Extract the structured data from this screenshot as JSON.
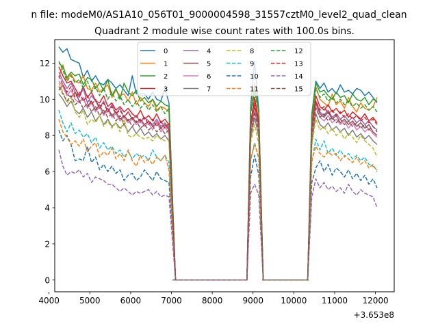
{
  "chart_data": {
    "type": "line",
    "suptitle": "n file: modeM0/AS1A10_056T01_9000004598_31557cztM0_level2_quad_clean",
    "title": "Quadrant 2 module wise count rates with 100.0s bins.",
    "xlabel": "",
    "ylabel": "",
    "x_offset_label": "+3.653e8",
    "xlim": [
      4140,
      12460
    ],
    "ylim": [
      -0.65,
      13.3
    ],
    "xticks": [
      4000,
      5000,
      6000,
      7000,
      8000,
      9000,
      10000,
      11000,
      12000
    ],
    "yticks": [
      0,
      2,
      4,
      6,
      8,
      10,
      12
    ],
    "grid": false,
    "legend_position": "top-center",
    "x": [
      4240,
      4340,
      4440,
      4540,
      4640,
      4740,
      4840,
      4940,
      5040,
      5140,
      5240,
      5340,
      5440,
      5540,
      5640,
      5740,
      5840,
      5940,
      6040,
      6140,
      6240,
      6340,
      6440,
      6540,
      6640,
      6740,
      6840,
      6940,
      7040,
      8840,
      8940,
      9040,
      9140,
      9240,
      10340,
      10440,
      10540,
      10640,
      10740,
      10840,
      10940,
      11040,
      11140,
      11240,
      11340,
      11440,
      11540,
      11640,
      11740,
      11840,
      11940,
      12040
    ],
    "gap_x": [
      7100,
      8850,
      9250,
      10350
    ],
    "series": [
      {
        "name": "0",
        "color": "#1f77b4",
        "dash": "solid",
        "values": [
          12.9,
          12.6,
          12.8,
          12.2,
          12.1,
          12.0,
          11.2,
          11.6,
          11.0,
          11.3,
          10.9,
          10.8,
          11.1,
          10.9,
          10.6,
          10.8,
          10.5,
          10.2,
          11.3,
          10.3,
          10.3,
          10.3,
          10.0,
          10.4,
          10.0,
          9.9,
          10.6,
          9.8,
          0,
          0,
          9.6,
          12.1,
          9.4,
          0,
          0,
          9.2,
          11.0,
          10.6,
          10.9,
          10.4,
          10.6,
          10.3,
          10.8,
          10.4,
          10.5,
          10.3,
          10.6,
          10.5,
          10.2,
          10.4,
          10.1,
          9.8
        ]
      },
      {
        "name": "1",
        "color": "#ff7f0e",
        "dash": "solid",
        "values": [
          11.2,
          11.9,
          11.1,
          11.4,
          11.0,
          10.9,
          11.3,
          10.6,
          10.5,
          10.9,
          10.4,
          10.6,
          10.8,
          10.1,
          10.5,
          10.2,
          10.3,
          9.9,
          10.4,
          9.7,
          10.1,
          9.8,
          9.6,
          10.0,
          9.4,
          9.6,
          9.5,
          9.3,
          0,
          0,
          9.3,
          10.9,
          9.2,
          0,
          0,
          8.9,
          10.7,
          10.0,
          9.8,
          9.6,
          10.3,
          9.7,
          9.9,
          9.5,
          10.1,
          9.6,
          9.3,
          9.8,
          9.5,
          9.4,
          9.6,
          10.1
        ]
      },
      {
        "name": "2",
        "color": "#2ca02c",
        "dash": "solid",
        "values": [
          12.0,
          11.8,
          11.2,
          11.5,
          11.3,
          11.4,
          10.8,
          11.2,
          11.1,
          10.6,
          10.9,
          10.5,
          11.1,
          10.2,
          10.6,
          10.0,
          10.9,
          10.4,
          10.2,
          10.5,
          9.9,
          10.1,
          9.8,
          10.0,
          9.6,
          9.9,
          9.7,
          9.6,
          0,
          0,
          9.3,
          10.6,
          9.4,
          0,
          0,
          9.1,
          10.9,
          10.4,
          10.5,
          10.2,
          10.0,
          10.4,
          10.1,
          10.2,
          9.8,
          10.3,
          10.0,
          9.9,
          10.1,
          9.7,
          10.0,
          9.9
        ]
      },
      {
        "name": "3",
        "color": "#d62728",
        "dash": "solid",
        "values": [
          11.8,
          11.3,
          10.9,
          11.0,
          10.6,
          10.2,
          10.7,
          10.1,
          10.4,
          9.9,
          9.8,
          10.2,
          9.6,
          9.8,
          9.4,
          9.6,
          9.3,
          9.5,
          9.2,
          9.0,
          9.4,
          8.9,
          9.1,
          8.8,
          9.2,
          8.7,
          8.9,
          8.6,
          0,
          0,
          8.7,
          10.1,
          8.8,
          0,
          0,
          8.5,
          10.2,
          9.6,
          9.4,
          9.7,
          9.3,
          9.5,
          9.2,
          9.4,
          9.0,
          9.3,
          9.1,
          8.9,
          9.2,
          8.8,
          9.0,
          8.7
        ]
      },
      {
        "name": "4",
        "color": "#9467bd",
        "dash": "solid",
        "values": [
          11.5,
          11.0,
          10.6,
          10.9,
          10.4,
          10.1,
          10.6,
          9.8,
          10.2,
          9.9,
          9.5,
          9.9,
          9.3,
          9.7,
          9.2,
          9.5,
          9.0,
          9.3,
          8.9,
          9.1,
          8.7,
          9.0,
          8.8,
          8.6,
          8.9,
          8.5,
          8.7,
          8.4,
          0,
          0,
          8.4,
          9.7,
          8.5,
          0,
          0,
          8.3,
          9.9,
          9.3,
          9.1,
          9.4,
          9.0,
          9.2,
          8.9,
          9.1,
          8.8,
          9.0,
          8.7,
          8.9,
          8.6,
          8.8,
          8.5,
          8.3
        ]
      },
      {
        "name": "5",
        "color": "#8c564b",
        "dash": "solid",
        "values": [
          10.5,
          10.8,
          10.3,
          10.1,
          10.4,
          9.9,
          10.0,
          9.6,
          9.9,
          9.4,
          9.7,
          9.2,
          9.5,
          9.1,
          9.3,
          8.9,
          9.1,
          8.8,
          9.0,
          8.7,
          8.9,
          8.6,
          8.8,
          8.5,
          8.7,
          8.4,
          8.6,
          8.3,
          0,
          0,
          8.3,
          9.6,
          8.4,
          0,
          0,
          8.1,
          9.8,
          9.2,
          9.0,
          9.3,
          8.9,
          9.1,
          8.7,
          8.9,
          8.6,
          8.8,
          8.5,
          8.7,
          8.4,
          8.6,
          8.2,
          8.0
        ]
      },
      {
        "name": "6",
        "color": "#e377c2",
        "dash": "solid",
        "values": [
          11.0,
          10.7,
          10.2,
          10.5,
          10.0,
          9.8,
          10.1,
          9.5,
          9.8,
          9.3,
          9.6,
          9.1,
          9.4,
          9.0,
          9.2,
          8.8,
          9.0,
          8.7,
          8.9,
          8.6,
          8.8,
          8.5,
          8.7,
          8.3,
          8.8,
          8.2,
          8.5,
          8.1,
          0,
          0,
          8.2,
          9.4,
          8.3,
          0,
          0,
          8.0,
          9.6,
          9.0,
          8.8,
          9.1,
          8.7,
          8.9,
          8.6,
          8.8,
          8.4,
          8.7,
          8.3,
          8.5,
          8.2,
          8.4,
          8.1,
          7.9
        ]
      },
      {
        "name": "7",
        "color": "#7f7f7f",
        "dash": "solid",
        "values": [
          10.3,
          10.0,
          9.6,
          9.9,
          9.4,
          9.2,
          9.5,
          9.0,
          9.3,
          8.8,
          9.1,
          8.6,
          8.9,
          8.5,
          8.7,
          8.4,
          8.6,
          8.2,
          8.5,
          8.1,
          8.4,
          8.0,
          8.2,
          7.9,
          8.1,
          7.8,
          8.0,
          7.7,
          0,
          0,
          7.8,
          9.0,
          7.9,
          0,
          0,
          7.6,
          9.2,
          8.6,
          8.4,
          8.7,
          8.3,
          8.5,
          8.2,
          8.4,
          8.0,
          8.3,
          7.9,
          8.1,
          7.8,
          8.0,
          7.7,
          7.5
        ]
      },
      {
        "name": "8",
        "color": "#bcbd22",
        "dash": "dashed",
        "values": [
          10.9,
          10.4,
          9.8,
          10.1,
          9.3,
          9.0,
          9.4,
          8.6,
          8.9,
          8.7,
          9.1,
          8.5,
          8.8,
          8.4,
          8.7,
          8.2,
          8.9,
          8.0,
          7.9,
          8.1,
          7.9,
          7.8,
          7.9,
          7.7,
          8.0,
          7.8,
          7.7,
          7.8,
          0,
          0,
          7.6,
          8.6,
          7.5,
          0,
          0,
          7.4,
          8.9,
          8.3,
          8.5,
          8.1,
          8.4,
          8.0,
          8.2,
          7.8,
          8.1,
          7.9,
          7.6,
          8.0,
          7.7,
          7.5,
          7.3,
          6.8
        ]
      },
      {
        "name": "9",
        "color": "#17becf",
        "dash": "dashed",
        "values": [
          9.4,
          8.7,
          8.2,
          8.7,
          8.1,
          8.3,
          7.9,
          8.1,
          7.6,
          7.9,
          7.3,
          7.6,
          7.2,
          7.4,
          7.0,
          7.2,
          6.8,
          7.1,
          6.7,
          7.0,
          6.8,
          6.9,
          6.6,
          7.2,
          6.8,
          6.6,
          6.9,
          6.5,
          0,
          0,
          6.6,
          7.6,
          6.7,
          0,
          0,
          6.5,
          7.8,
          7.2,
          7.7,
          7.0,
          7.3,
          6.9,
          7.2,
          6.8,
          7.0,
          6.7,
          6.9,
          6.6,
          6.8,
          6.4,
          6.3,
          6.1
        ]
      },
      {
        "name": "10",
        "color": "#1f77b4",
        "dash": "dashed",
        "values": [
          8.3,
          7.7,
          8.0,
          7.5,
          6.6,
          6.7,
          6.6,
          7.4,
          6.5,
          6.8,
          6.1,
          6.4,
          6.0,
          6.3,
          5.9,
          6.1,
          5.5,
          5.8,
          5.9,
          5.5,
          5.7,
          6.1,
          5.8,
          5.5,
          6.0,
          5.6,
          5.5,
          5.4,
          0,
          0,
          5.7,
          6.9,
          5.8,
          0,
          0,
          5.4,
          6.2,
          6.6,
          6.0,
          6.4,
          5.8,
          6.2,
          6.0,
          5.7,
          6.1,
          5.6,
          5.9,
          5.5,
          5.8,
          5.3,
          5.6,
          5.1
        ]
      },
      {
        "name": "11",
        "color": "#ff7f0e",
        "dash": "dashed",
        "values": [
          8.9,
          8.2,
          7.9,
          7.5,
          7.7,
          7.4,
          7.8,
          7.1,
          7.4,
          7.6,
          6.8,
          7.1,
          6.9,
          7.3,
          6.7,
          7.0,
          6.6,
          7.2,
          6.6,
          6.3,
          6.9,
          6.5,
          6.7,
          6.4,
          6.8,
          6.6,
          6.9,
          6.1,
          0,
          0,
          6.7,
          7.5,
          6.8,
          0,
          0,
          6.6,
          7.4,
          7.0,
          6.8,
          7.1,
          6.9,
          7.0,
          6.6,
          6.9,
          6.7,
          6.5,
          6.8,
          6.4,
          6.6,
          6.2,
          6.4,
          6.0
        ]
      },
      {
        "name": "12",
        "color": "#2ca02c",
        "dash": "dashed",
        "values": [
          12.1,
          11.6,
          11.0,
          11.3,
          10.9,
          11.1,
          10.6,
          11.0,
          10.4,
          10.7,
          10.2,
          10.6,
          10.0,
          10.4,
          9.9,
          10.2,
          9.7,
          10.0,
          9.6,
          9.9,
          9.5,
          9.8,
          9.4,
          9.7,
          9.3,
          9.6,
          9.2,
          9.5,
          0,
          0,
          9.2,
          10.4,
          9.3,
          0,
          0,
          9.0,
          10.6,
          10.1,
          10.3,
          9.9,
          10.1,
          9.8,
          10.0,
          9.7,
          9.9,
          9.6,
          9.8,
          9.5,
          9.7,
          9.4,
          9.6,
          9.3
        ]
      },
      {
        "name": "13",
        "color": "#d62728",
        "dash": "dashed",
        "values": [
          11.3,
          10.8,
          10.4,
          10.7,
          10.1,
          10.4,
          9.9,
          10.2,
          9.7,
          10.0,
          9.5,
          9.8,
          9.3,
          9.6,
          9.2,
          9.4,
          9.0,
          9.3,
          8.9,
          9.1,
          8.8,
          9.0,
          8.6,
          8.9,
          8.5,
          8.8,
          8.4,
          8.7,
          0,
          0,
          8.5,
          9.8,
          8.6,
          0,
          0,
          8.4,
          9.9,
          9.4,
          9.6,
          9.2,
          9.4,
          9.1,
          9.3,
          9.0,
          9.2,
          8.9,
          9.1,
          8.8,
          9.0,
          8.7,
          8.9,
          8.6
        ]
      },
      {
        "name": "14",
        "color": "#9467bd",
        "dash": "dashed",
        "values": [
          7.2,
          6.3,
          5.8,
          6.0,
          5.9,
          6.1,
          5.7,
          5.9,
          5.4,
          5.7,
          5.6,
          5.5,
          5.3,
          5.3,
          5.1,
          4.9,
          5.1,
          4.9,
          4.7,
          4.9,
          4.8,
          4.9,
          5.0,
          4.7,
          4.9,
          4.6,
          4.7,
          4.6,
          0,
          0,
          4.8,
          5.3,
          4.7,
          0,
          0,
          4.6,
          5.6,
          5.1,
          5.4,
          5.0,
          5.2,
          4.9,
          5.1,
          4.8,
          5.3,
          4.9,
          4.7,
          5.0,
          4.8,
          4.7,
          4.6,
          4.0
        ]
      },
      {
        "name": "15",
        "color": "#8c564b",
        "dash": "dashed",
        "values": [
          10.7,
          10.3,
          9.9,
          10.2,
          9.7,
          9.9,
          9.5,
          9.8,
          9.3,
          9.6,
          9.1,
          9.4,
          9.0,
          9.2,
          8.8,
          9.1,
          8.6,
          8.9,
          8.5,
          8.8,
          8.4,
          8.6,
          8.3,
          8.5,
          8.2,
          8.4,
          8.1,
          8.3,
          0,
          0,
          8.1,
          9.3,
          8.2,
          0,
          0,
          8.0,
          9.5,
          9.0,
          9.2,
          8.8,
          9.0,
          8.7,
          8.9,
          8.6,
          8.8,
          8.5,
          8.7,
          8.4,
          8.6,
          8.3,
          8.5,
          8.2
        ]
      }
    ]
  }
}
